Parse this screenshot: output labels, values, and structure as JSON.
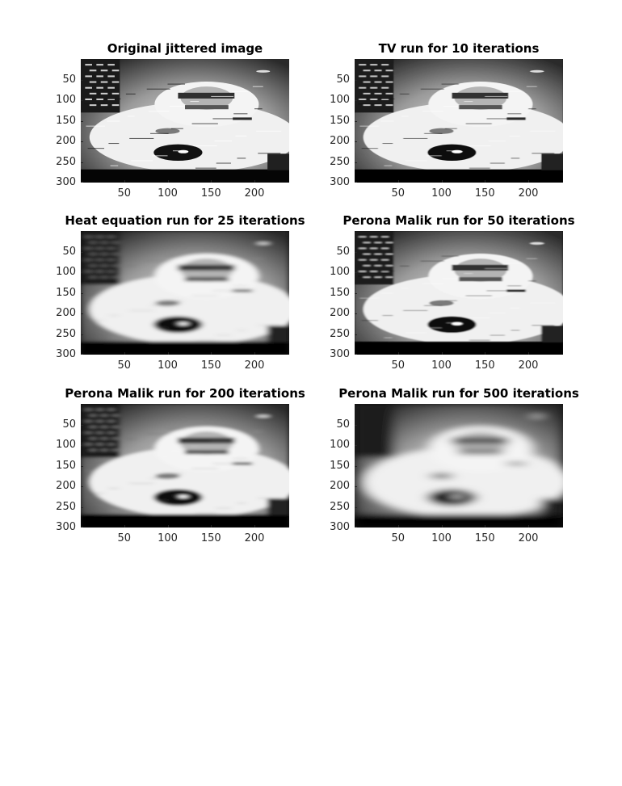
{
  "chart_data": [
    {
      "type": "heatmap",
      "title": "Original jittered image",
      "colormap": "gray",
      "xlim": [
        0,
        240
      ],
      "ylim": [
        0,
        300
      ],
      "y_reversed": true,
      "xticks": [
        50,
        100,
        150,
        200
      ],
      "yticks": [
        50,
        100,
        150,
        200,
        250,
        300
      ],
      "blur": 0,
      "jitter": 1.0
    },
    {
      "type": "heatmap",
      "title": "TV run for 10 iterations",
      "colormap": "gray",
      "xlim": [
        0,
        240
      ],
      "ylim": [
        0,
        300
      ],
      "y_reversed": true,
      "xticks": [
        50,
        100,
        150,
        200
      ],
      "yticks": [
        50,
        100,
        150,
        200,
        250,
        300
      ],
      "blur": 0.4,
      "jitter": 0.8
    },
    {
      "type": "heatmap",
      "title": "Heat equation run for 25 iterations",
      "colormap": "gray",
      "xlim": [
        0,
        240
      ],
      "ylim": [
        0,
        300
      ],
      "y_reversed": true,
      "xticks": [
        50,
        100,
        150,
        200
      ],
      "yticks": [
        50,
        100,
        150,
        200,
        250,
        300
      ],
      "blur": 3.5,
      "jitter": 0.2
    },
    {
      "type": "heatmap",
      "title": "Perona Malik run for 50 iterations",
      "colormap": "gray",
      "xlim": [
        0,
        240
      ],
      "ylim": [
        0,
        300
      ],
      "y_reversed": true,
      "xticks": [
        50,
        100,
        150,
        200
      ],
      "yticks": [
        50,
        100,
        150,
        200,
        250,
        300
      ],
      "blur": 1.2,
      "jitter": 0.6
    },
    {
      "type": "heatmap",
      "title": "Perona Malik run for 200 iterations",
      "colormap": "gray",
      "xlim": [
        0,
        240
      ],
      "ylim": [
        0,
        300
      ],
      "y_reversed": true,
      "xticks": [
        50,
        100,
        150,
        200
      ],
      "yticks": [
        50,
        100,
        150,
        200,
        250,
        300
      ],
      "blur": 3.0,
      "jitter": 0.25
    },
    {
      "type": "heatmap",
      "title": "Perona Malik run for 500 iterations",
      "colormap": "gray",
      "xlim": [
        0,
        240
      ],
      "ylim": [
        0,
        300
      ],
      "y_reversed": true,
      "xticks": [
        50,
        100,
        150,
        200
      ],
      "yticks": [
        50,
        100,
        150,
        200,
        250,
        300
      ],
      "blur": 7.0,
      "jitter": 0
    }
  ]
}
